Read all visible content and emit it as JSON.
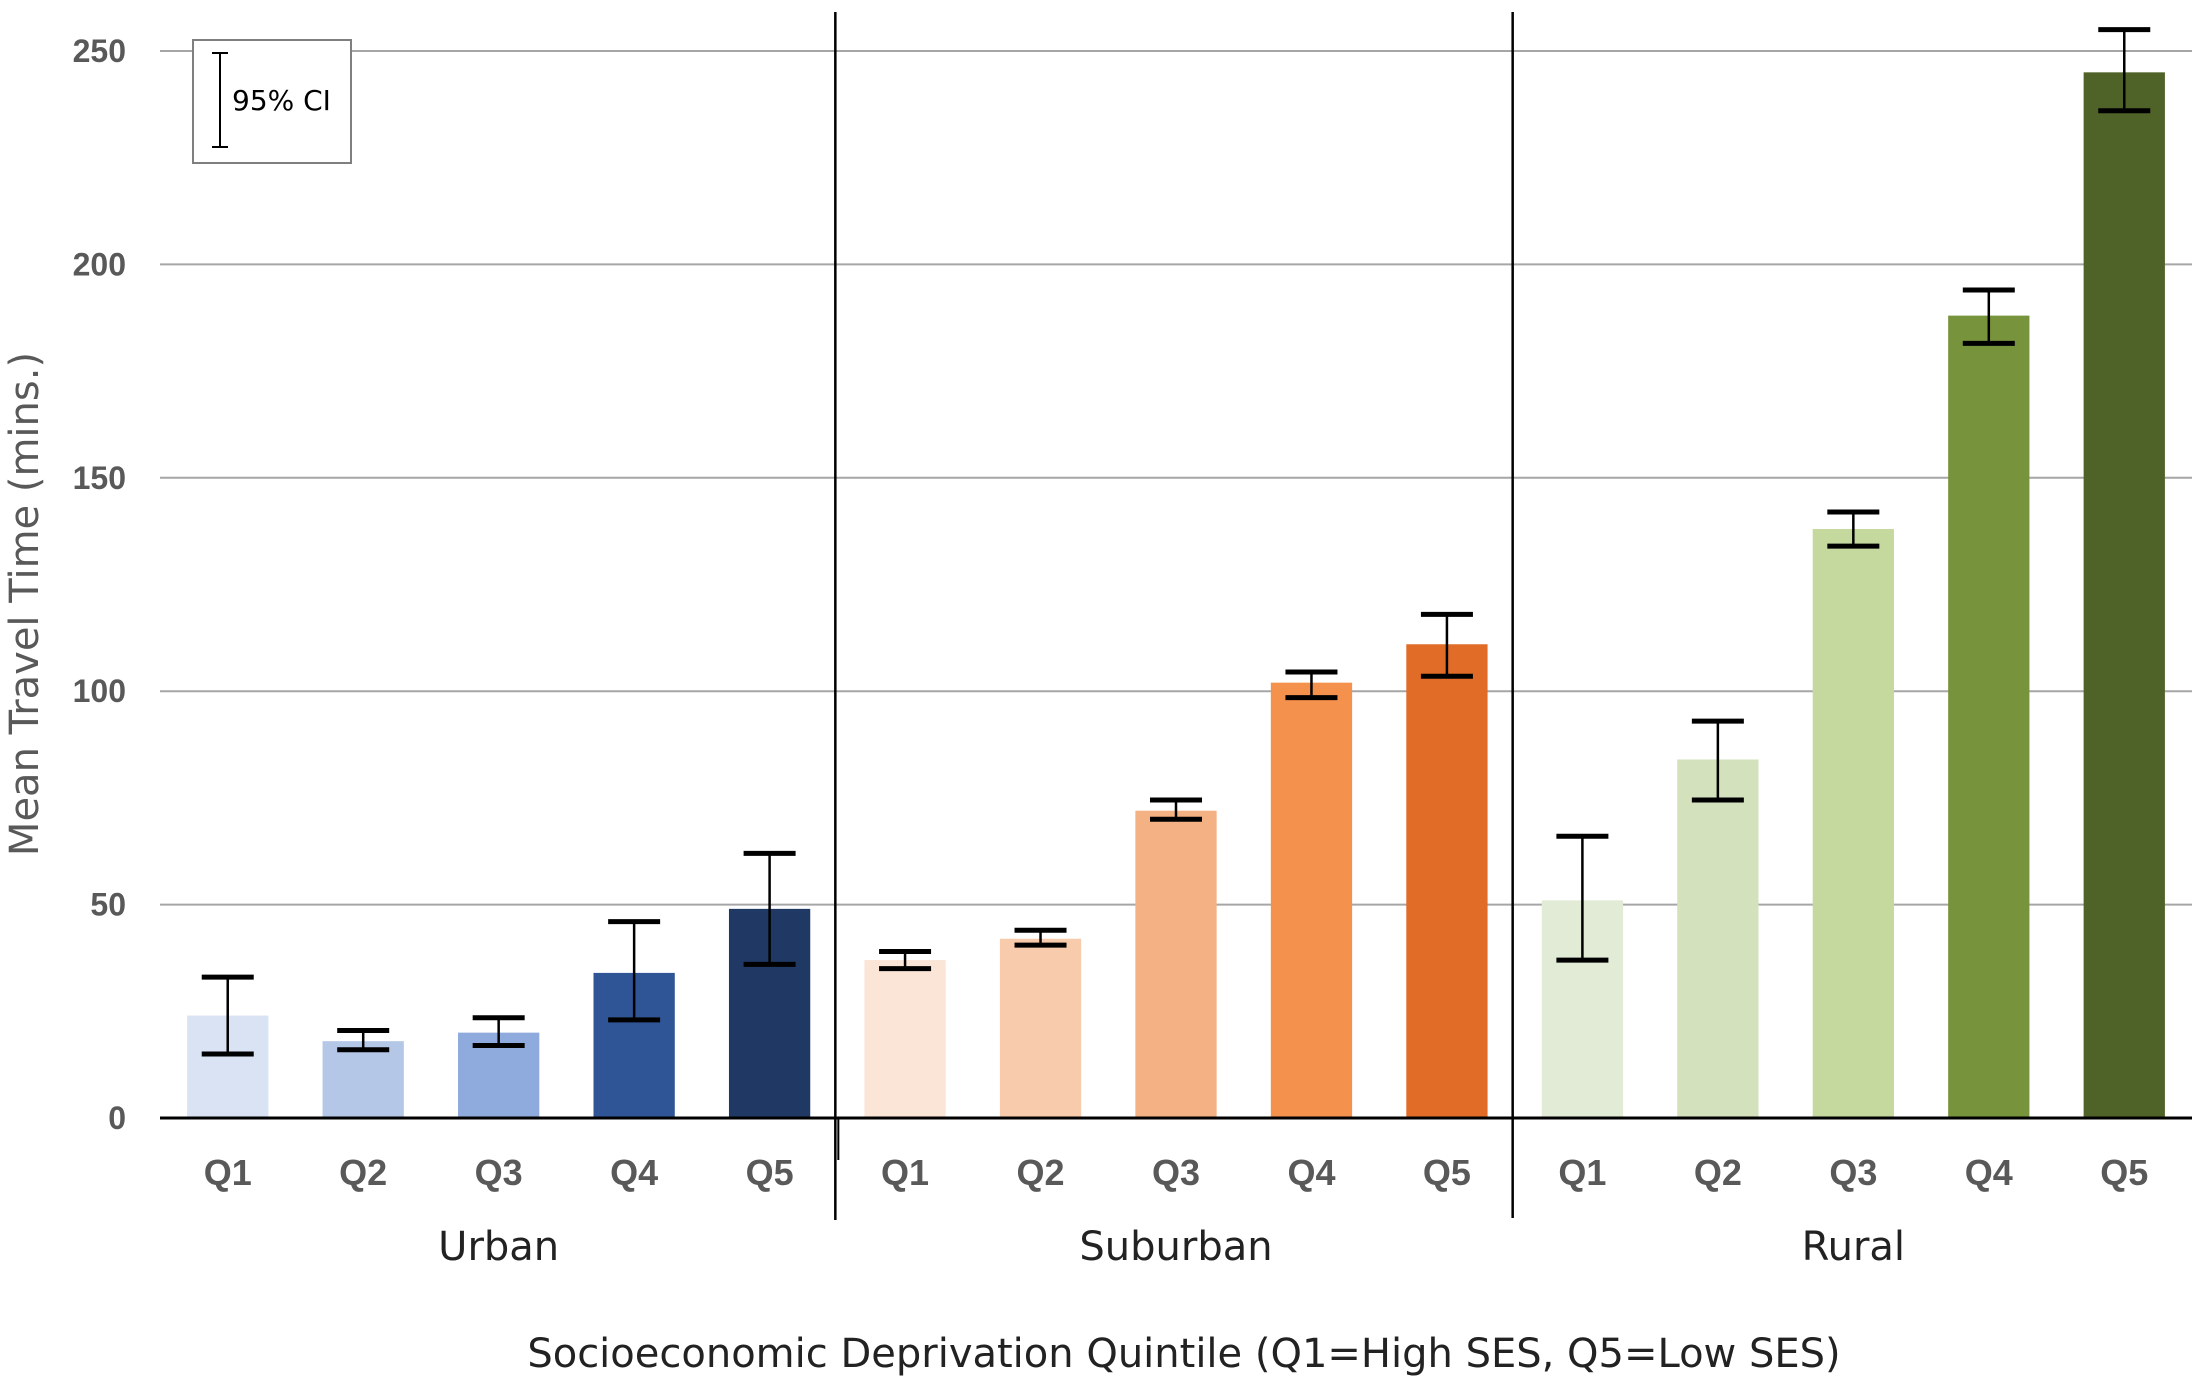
{
  "chart_data": {
    "type": "bar",
    "ylabel": "Mean Travel Time (mins.)",
    "xlabel": "Socioeconomic Deprivation Quintile (Q1=High SES, Q5=Low SES)",
    "ylim": [
      0,
      250
    ],
    "yticks": [
      0,
      50,
      100,
      150,
      200,
      250
    ],
    "grid": true,
    "legend": {
      "label": "95% CI",
      "position": "top-left"
    },
    "groups": [
      {
        "name": "Urban",
        "categories": [
          "Q1",
          "Q2",
          "Q3",
          "Q4",
          "Q5"
        ],
        "values": [
          24,
          18,
          20,
          34,
          49
        ],
        "ci_low": [
          15,
          16,
          17,
          23,
          36
        ],
        "ci_high": [
          33,
          20.5,
          23.5,
          46,
          62
        ],
        "colors": [
          "#dae3f3",
          "#b4c7e7",
          "#8faadc",
          "#2f5597",
          "#203864"
        ]
      },
      {
        "name": "Suburban",
        "categories": [
          "Q1",
          "Q2",
          "Q3",
          "Q4",
          "Q5"
        ],
        "values": [
          37,
          42,
          72,
          102,
          111
        ],
        "ci_low": [
          35,
          40.5,
          70,
          98.5,
          103.5
        ],
        "ci_high": [
          39,
          44,
          74.5,
          104.5,
          118
        ],
        "colors": [
          "#fbe5d6",
          "#f8cbad",
          "#f4b183",
          "#f4914c",
          "#e06c27"
        ]
      },
      {
        "name": "Rural",
        "categories": [
          "Q1",
          "Q2",
          "Q3",
          "Q4",
          "Q5"
        ],
        "values": [
          51,
          84,
          138,
          188,
          245
        ],
        "ci_low": [
          37,
          74.5,
          134,
          181.5,
          236
        ],
        "ci_high": [
          66,
          93,
          142,
          194,
          255
        ],
        "colors": [
          "#e2ebd6",
          "#d3e2bd",
          "#c5d99f",
          "#77933c",
          "#4f6228"
        ]
      }
    ]
  }
}
